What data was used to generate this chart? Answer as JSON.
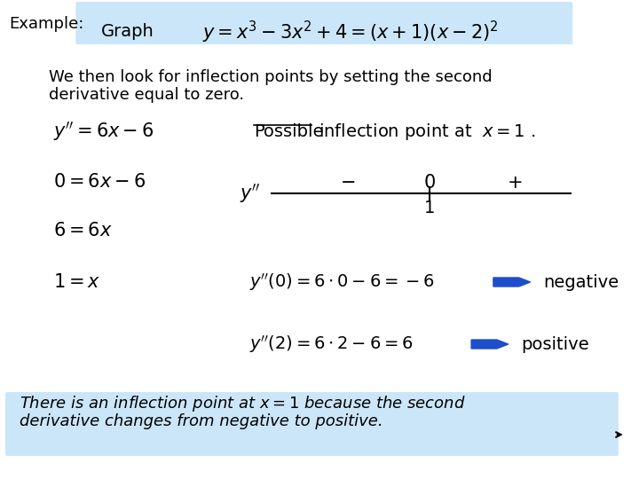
{
  "bg_color": "#ffffff",
  "header_box_color": "#cce6f9",
  "footer_box_color": "#cce6f9",
  "title_label": "Example:",
  "graph_label": "Graph",
  "equation": "$y = x^3 - 3x^2 + 4 = (x+1)(x-2)^2$",
  "body_line1": "We then look for inflection points by setting the second",
  "body_line2": "derivative equal to zero.",
  "left_col": [
    "$y'' = 6x - 6$",
    "$0 = 6x - 6$",
    "$6 = 6x$",
    "$1 = x$"
  ],
  "sign_chart_label": "$y''$",
  "sign_minus": "−",
  "sign_zero": "0",
  "sign_plus": "+",
  "sign_value": "1",
  "eval1_eq": "$y''(0) = 6 \\cdot 0 - 6 = -6$",
  "eval1_label": "negative",
  "eval2_eq": "$y''(2) = 6 \\cdot 2 - 6 = 6$",
  "eval2_label": "positive",
  "footer_line1": "There is an inflection point at $x = 1$ because the second",
  "footer_line2": "derivative changes from negative to positive.",
  "arrow_color": "#1e4dcc",
  "text_color": "#000000",
  "font_size_body": 13,
  "font_size_math": 13
}
